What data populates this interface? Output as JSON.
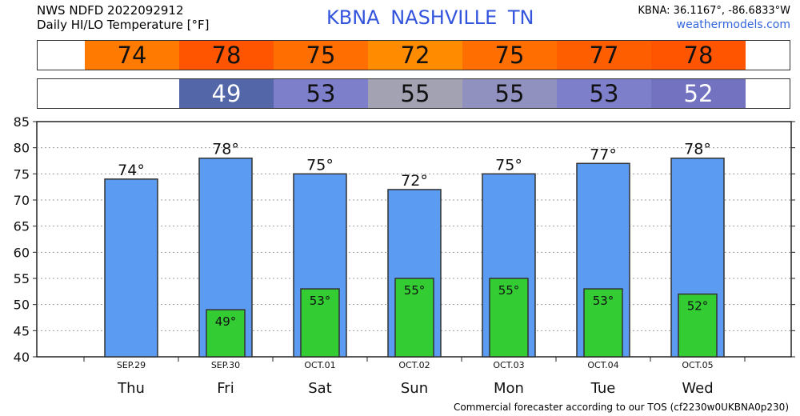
{
  "header": {
    "line1": "NWS NDFD 2022092912",
    "line2": "Daily HI/LO Temperature [°F]",
    "station": "KBNA  NASHVILLE     TN",
    "coords": "KBNA: 36.1167°, -86.6833°W",
    "site": "weathermodels.com"
  },
  "hi_strip": [
    {
      "value": "74",
      "color": "#ff7a00"
    },
    {
      "value": "78",
      "color": "#ff5500"
    },
    {
      "value": "75",
      "color": "#ff6e00"
    },
    {
      "value": "72",
      "color": "#ff8c00"
    },
    {
      "value": "75",
      "color": "#ff6e00"
    },
    {
      "value": "77",
      "color": "#ff5e00"
    },
    {
      "value": "78",
      "color": "#ff5500"
    }
  ],
  "lo_strip": [
    {
      "value": "",
      "color": "#ffffff"
    },
    {
      "value": "49",
      "color": "#5266a8"
    },
    {
      "value": "53",
      "color": "#7e7fcb"
    },
    {
      "value": "55",
      "color": "#a2a2b2"
    },
    {
      "value": "55",
      "color": "#9191c0"
    },
    {
      "value": "53",
      "color": "#7e7fcb"
    },
    {
      "value": "52",
      "color": "#7272c0"
    }
  ],
  "chart_data": {
    "type": "bar",
    "dates": [
      "SEP.29",
      "SEP.30",
      "OCT.01",
      "OCT.02",
      "OCT.03",
      "OCT.04",
      "OCT.05"
    ],
    "days": [
      "Thu",
      "Fri",
      "Sat",
      "Sun",
      "Mon",
      "Tue",
      "Wed"
    ],
    "series": [
      {
        "name": "HI",
        "values": [
          74,
          78,
          75,
          72,
          75,
          77,
          78
        ],
        "color": "#5b9cf2"
      },
      {
        "name": "LO",
        "values": [
          null,
          49,
          53,
          55,
          55,
          53,
          52
        ],
        "color": "#33cc33"
      }
    ],
    "ylim": [
      40,
      85
    ],
    "yticks": [
      40,
      45,
      50,
      55,
      60,
      65,
      70,
      75,
      80,
      85
    ],
    "grid": true
  },
  "footer": "Commercial forecaster according to our TOS (cf2230w0UKBNA0p230)"
}
